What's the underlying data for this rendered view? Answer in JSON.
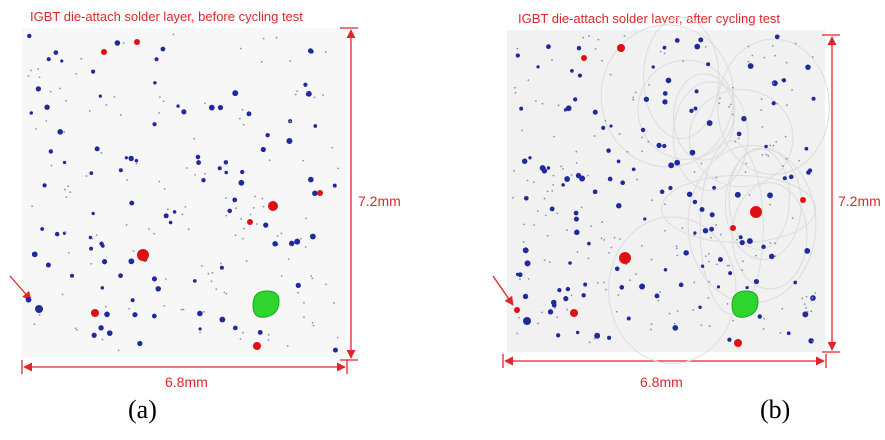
{
  "panels": [
    {
      "title": "IGBT die-attach solder layer, before cycling test",
      "height_label": "7.2mm",
      "width_label": "6.8mm",
      "caption": "(a)"
    },
    {
      "title": "IGBT die-attach solder layer, after cycling test",
      "height_label": "7.2mm",
      "width_label": "6.8mm",
      "caption": "(b)"
    }
  ]
}
